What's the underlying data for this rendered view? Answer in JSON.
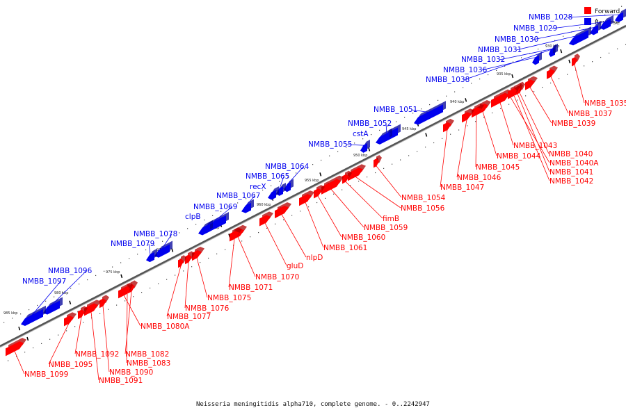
{
  "caption": "Neisseria meningitidis alpha710, complete genome. - 0..2242947",
  "colors": {
    "forward": "#ff0000",
    "reverse": "#0000ee",
    "forward_dark": "#b00000",
    "reverse_dark": "#000099",
    "backbone": "#555555"
  },
  "legend": {
    "forward": "Forward",
    "reverse": "Reverse"
  },
  "scale_labels": [
    "930 kbp",
    "935 kbp",
    "940 kbp",
    "945 kbp",
    "950 kbp",
    "955 kbp",
    "960 kbp",
    "965 kbp",
    "970 kbp",
    "975 kbp",
    "980 kbp",
    "985 kbp"
  ],
  "reverse_genes": [
    "NMBB_1028",
    "NMBB_1029",
    "NMBB_1030",
    "NMBB_1031",
    "NMBB_1032",
    "NMBB_1036",
    "NMBB_1038",
    "NMBB_1051",
    "NMBB_1052",
    "cstA",
    "NMBB_1055",
    "NMBB_1064",
    "NMBB_1065",
    "recX",
    "NMBB_1067",
    "NMBB_1069",
    "clpB",
    "NMBB_1078",
    "NMBB_1079",
    "NMBB_1096",
    "NMBB_1097"
  ],
  "forward_genes": [
    "NMBB_1035",
    "NMBB_1037",
    "NMBB_1039",
    "NMBB_1043",
    "NMBB_1040",
    "NMBB_1040A",
    "NMBB_1041",
    "NMBB_1042",
    "NMBB_1044",
    "NMBB_1045",
    "NMBB_1046",
    "NMBB_1047",
    "NMBB_1054",
    "NMBB_1056",
    "fimB",
    "NMBB_1059",
    "NMBB_1060",
    "NMBB_1061",
    "nlpD",
    "gluD",
    "NMBB_1070",
    "NMBB_1071",
    "NMBB_1075",
    "NMBB_1076",
    "NMBB_1077",
    "NMBB_1080A",
    "NMBB_1082",
    "NMBB_1083",
    "NMBB_1090",
    "NMBB_1091",
    "NMBB_1092",
    "NMBB_1095",
    "NMBB_1099"
  ]
}
